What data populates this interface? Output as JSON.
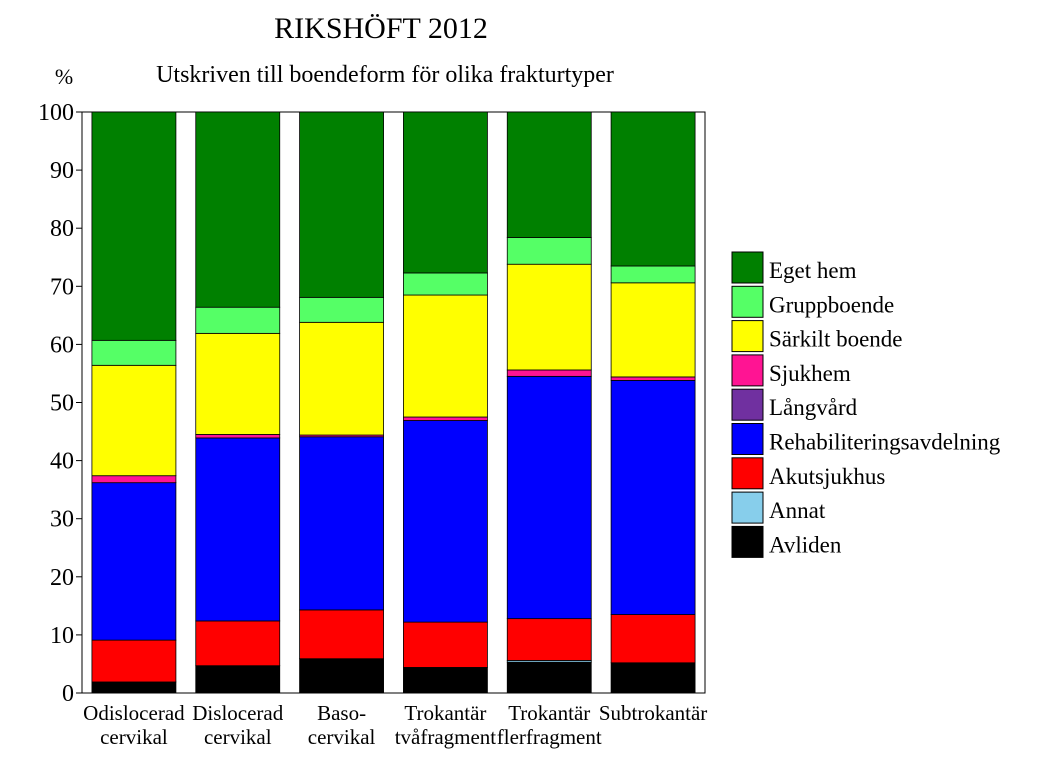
{
  "chart_data": {
    "type": "bar",
    "stacked": true,
    "percent_stacked": true,
    "title": "RIKSHÖFT 2012",
    "subtitle": "Utskriven till boendeform för olika frakturtyper",
    "ylabel": "%",
    "xlabel": "",
    "ylim": [
      0,
      100
    ],
    "yticks": [
      0,
      10,
      20,
      30,
      40,
      50,
      60,
      70,
      80,
      90,
      100
    ],
    "grid": false,
    "legend_position": "right",
    "categories": [
      [
        "Odislocerad",
        "cervikal"
      ],
      [
        "Dislocerad",
        "cervikal"
      ],
      [
        "Baso-",
        "cervikal"
      ],
      [
        "Trokantär",
        "tvåfragment"
      ],
      [
        "Trokantär",
        "flerfragment"
      ],
      [
        "Subtrokantär"
      ]
    ],
    "series": [
      {
        "name": "Avliden",
        "color": "#000000",
        "values": [
          1.9,
          4.7,
          5.9,
          4.4,
          5.3,
          5.2
        ]
      },
      {
        "name": "Annat",
        "color": "#87ceeb",
        "values": [
          0.0,
          0.0,
          0.0,
          0.0,
          0.3,
          0.0
        ]
      },
      {
        "name": "Akutsjukhus",
        "color": "#ff0000",
        "values": [
          7.2,
          7.7,
          8.4,
          7.8,
          7.2,
          8.3
        ]
      },
      {
        "name": "Rehabiliteringsavdelning",
        "color": "#0000ff",
        "values": [
          27.1,
          31.5,
          29.8,
          34.7,
          41.7,
          40.3
        ]
      },
      {
        "name": "Långvård",
        "color": "#7030a0",
        "values": [
          0.0,
          0.0,
          0.0,
          0.0,
          0.0,
          0.0
        ]
      },
      {
        "name": "Sjukhem",
        "color": "#ff1493",
        "values": [
          1.2,
          0.6,
          0.3,
          0.6,
          1.1,
          0.6
        ]
      },
      {
        "name": "Särkilt boende",
        "color": "#ffff00",
        "values": [
          19.0,
          17.4,
          19.4,
          21.0,
          18.2,
          16.2
        ]
      },
      {
        "name": "Gruppboende",
        "color": "#55ff66",
        "values": [
          4.3,
          4.5,
          4.3,
          3.8,
          4.6,
          2.9
        ]
      },
      {
        "name": "Eget hem",
        "color": "#008000",
        "values": [
          39.3,
          33.6,
          31.9,
          27.7,
          21.6,
          26.5
        ]
      }
    ],
    "legend_order": [
      "Eget hem",
      "Gruppboende",
      "Särkilt boende",
      "Sjukhem",
      "Långvård",
      "Rehabiliteringsavdelning",
      "Akutsjukhus",
      "Annat",
      "Avliden"
    ]
  }
}
